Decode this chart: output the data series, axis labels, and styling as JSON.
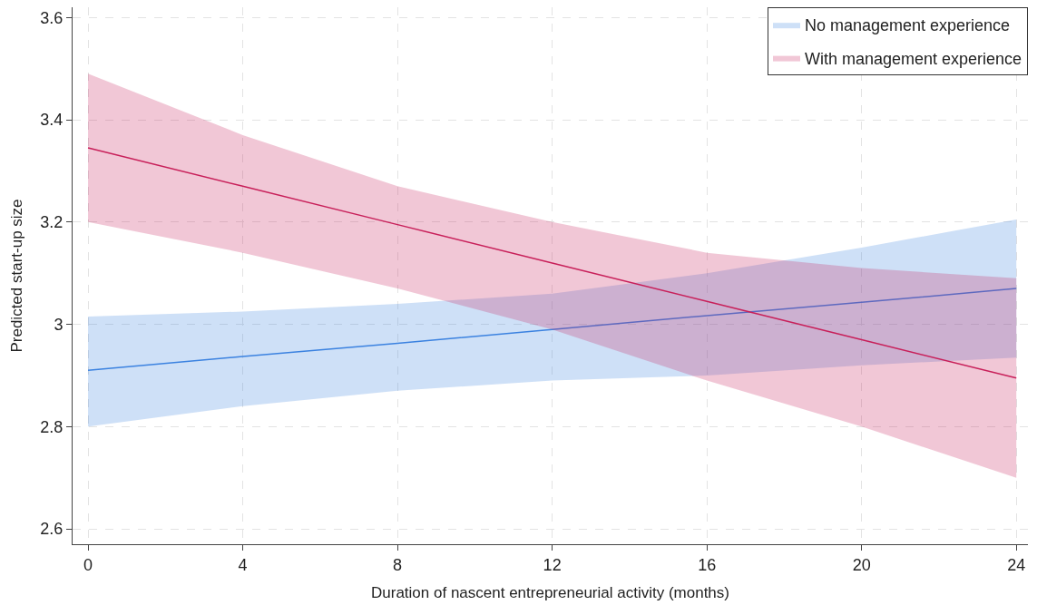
{
  "chart_data": {
    "type": "line",
    "xlabel": "Duration of nascent entrepreneurial activity (months)",
    "ylabel": "Predicted start-up size",
    "x": [
      0,
      4,
      8,
      12,
      16,
      20,
      24
    ],
    "series": [
      {
        "name": "No management experience",
        "color": "#3b82e0",
        "values": [
          2.91,
          2.937,
          2.963,
          2.99,
          3.017,
          3.043,
          3.07
        ],
        "lower": [
          2.8,
          2.84,
          2.87,
          2.89,
          2.9,
          2.92,
          2.935
        ],
        "upper": [
          3.015,
          3.025,
          3.04,
          3.06,
          3.1,
          3.15,
          3.205
        ]
      },
      {
        "name": "With management experience",
        "color": "#c8205a",
        "values": [
          3.345,
          3.27,
          3.195,
          3.12,
          3.045,
          2.97,
          2.895
        ],
        "lower": [
          3.2,
          3.14,
          3.07,
          2.99,
          2.89,
          2.8,
          2.7
        ],
        "upper": [
          3.49,
          3.37,
          3.27,
          3.2,
          3.14,
          3.11,
          3.09
        ]
      }
    ],
    "xlim": [
      -0.4,
      24.3
    ],
    "xticks": [
      0,
      4,
      8,
      12,
      16,
      20,
      24
    ],
    "ylim": [
      2.57,
      3.62
    ],
    "yticks": [
      2.6,
      2.8,
      3.0,
      3.2,
      3.4,
      3.6
    ],
    "grid": true,
    "legend": "top right",
    "line_style": "solid",
    "marker": "none"
  }
}
